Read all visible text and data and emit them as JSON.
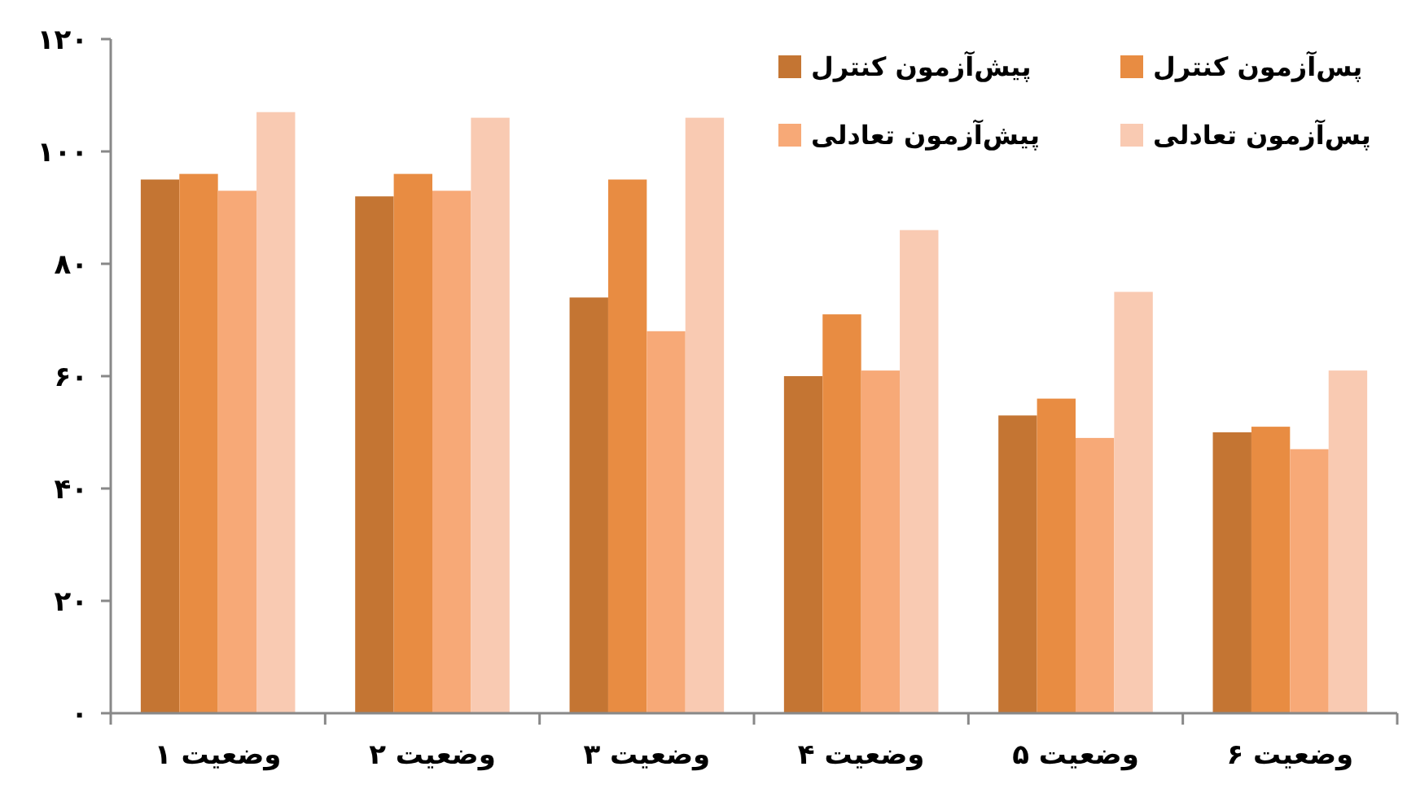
{
  "chart_data": {
    "type": "bar",
    "categories": [
      "وضعیت ۱",
      "وضعیت ۲",
      "وضعیت ۳",
      "وضعیت ۴",
      "وضعیت ۵",
      "وضعیت ۶"
    ],
    "series": [
      {
        "name": "پیش‌آزمون کنترل",
        "color": "#c47533",
        "values": [
          95,
          92,
          74,
          60,
          53,
          50
        ]
      },
      {
        "name": "پس‌آزمون کنترل",
        "color": "#e88c42",
        "values": [
          96,
          96,
          95,
          71,
          56,
          51
        ]
      },
      {
        "name": "پیش‌آزمون تعادلی",
        "color": "#f7a977",
        "values": [
          93,
          93,
          68,
          61,
          49,
          47
        ]
      },
      {
        "name": "پس‌آزمون تعادلی",
        "color": "#f9cab2",
        "values": [
          107,
          106,
          106,
          86,
          75,
          61
        ]
      }
    ],
    "ylim": [
      0,
      120
    ],
    "yticks": [
      {
        "value": 0,
        "label": "۰"
      },
      {
        "value": 20,
        "label": "۲۰"
      },
      {
        "value": 40,
        "label": "۴۰"
      },
      {
        "value": 60,
        "label": "۶۰"
      },
      {
        "value": 80,
        "label": "۸۰"
      },
      {
        "value": 100,
        "label": "۱۰۰"
      },
      {
        "value": 120,
        "label": "۱۲۰"
      }
    ],
    "grid": false,
    "legend": "top right"
  }
}
